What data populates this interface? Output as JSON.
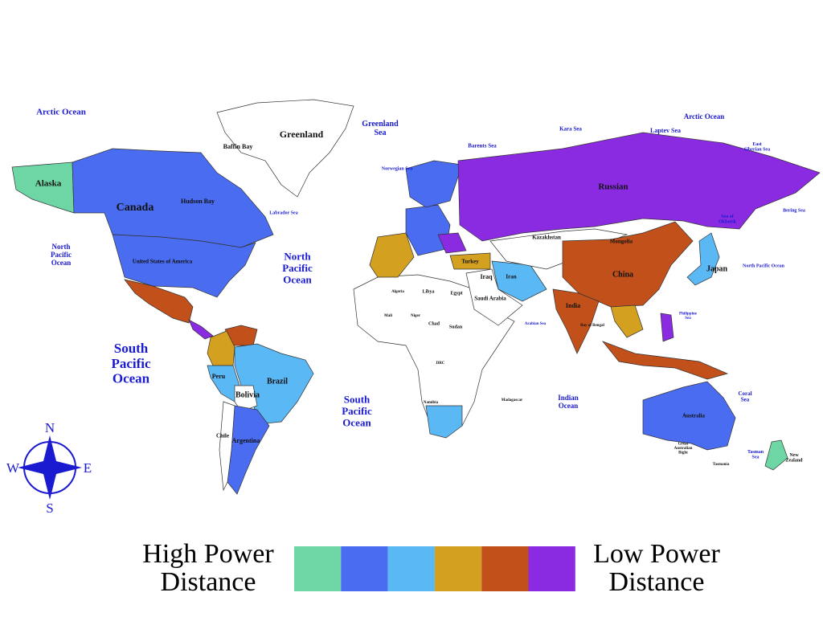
{
  "map": {
    "labels": [
      [
        "Arctic Ocean"
      ],
      [
        "Arctic Ocean"
      ],
      [
        "Greenland"
      ],
      [
        "Baffin Bay"
      ],
      [
        "Greenland",
        "Sea"
      ],
      [
        "Barents Sea"
      ],
      [
        "Kara Sea"
      ],
      [
        "Laptev Sea"
      ],
      [
        "East",
        "Siberian Sea"
      ],
      [
        "Bering Sea"
      ],
      [
        "Sea of",
        "Okhotsk"
      ],
      [
        "Hudson Bay"
      ],
      [
        "Labrador Sea"
      ],
      [
        "Norwegian Sea"
      ],
      [
        "Alaska"
      ],
      [
        "Canada"
      ],
      [
        "United States of America"
      ],
      [
        "North",
        "Pacific",
        "Ocean"
      ],
      [
        "North",
        "Pacific",
        "Ocean"
      ],
      [
        "South",
        "Pacific",
        "Ocean"
      ],
      [
        "South",
        "Pacific",
        "Ocean"
      ],
      [
        "Indian",
        "Ocean"
      ],
      [
        "North Pacific Ocean"
      ],
      [
        "Russian"
      ],
      [
        "Kazakhstan"
      ],
      [
        "Mongolia"
      ],
      [
        "China"
      ],
      [
        "Japan"
      ],
      [
        "India"
      ],
      [
        "Iran"
      ],
      [
        "Iraq"
      ],
      [
        "Saudi Arabia"
      ],
      [
        "Turkey"
      ],
      [
        "Egypt"
      ],
      [
        "Libya"
      ],
      [
        "Algeria"
      ],
      [
        "Chad"
      ],
      [
        "Sudan"
      ],
      [
        "Niger"
      ],
      [
        "Mali"
      ],
      [
        "DRC"
      ],
      [
        "Namibia"
      ],
      [
        "Madagascar"
      ],
      [
        "Brazil"
      ],
      [
        "Peru"
      ],
      [
        "Bolivia"
      ],
      [
        "Chile"
      ],
      [
        "Argentina"
      ],
      [
        "Australia"
      ],
      [
        "Great",
        "Australian",
        "Bight"
      ],
      [
        "Tasmania"
      ],
      [
        "Coral",
        "Sea"
      ],
      [
        "Tasman",
        "Sea"
      ],
      [
        "New",
        "Zealand"
      ],
      [
        "Philippine",
        "Sea"
      ],
      [
        "Bay of Bengal"
      ],
      [
        "Arabian Sea"
      ]
    ],
    "compass": [
      "N",
      "E",
      "S",
      "W"
    ]
  },
  "legend": {
    "left": [
      "High Power",
      "Distance"
    ],
    "right": [
      "Low Power",
      "Distance"
    ],
    "colors": [
      "#6dd6a4",
      "#4a6cf0",
      "#5ab8f5",
      "#d4a020",
      "#c2501a",
      "#8a2be2"
    ]
  }
}
